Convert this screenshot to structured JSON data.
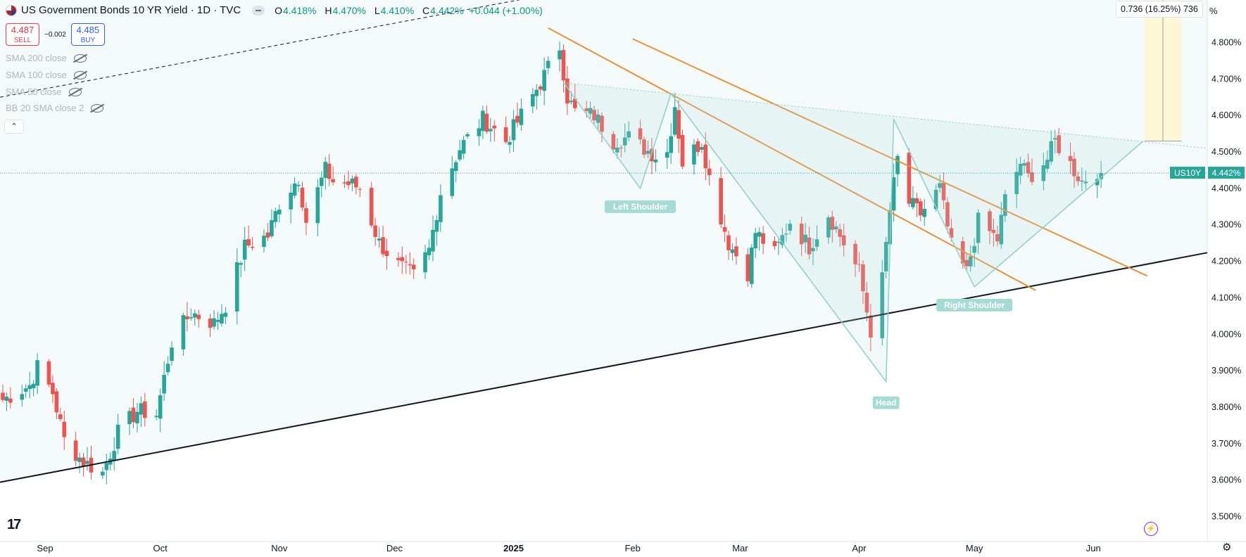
{
  "header": {
    "title": "US Government Bonds 10 YR Yield · 1D · TVC",
    "ohlc": [
      {
        "key": "O",
        "value": "4.418%"
      },
      {
        "key": "H",
        "value": "4.470%"
      },
      {
        "key": "L",
        "value": "4.410%"
      },
      {
        "key": "C",
        "value": "4.442%"
      }
    ],
    "change": "+0.044 (+1.00%)"
  },
  "trade": {
    "sell_price": "4.487",
    "sell_label": "SELL",
    "spread": "−0.002",
    "buy_price": "4.485",
    "buy_label": "BUY"
  },
  "indicators": [
    "SMA 200 close",
    "SMA 100 close",
    "SMA 50 close",
    "BB 20 SMA close 2"
  ],
  "collapse_icon": "chevron-up-icon",
  "measure_label": "0.736 (16.25%) 736",
  "axis_unit": "%",
  "colors": {
    "up": "#26a69a",
    "down": "#ef5350",
    "price_tag": "#26a69a",
    "pattern": "#b5dedb",
    "channel": "#e8913a",
    "trendline": "#131722"
  },
  "chart_data": {
    "type": "candlestick",
    "title": "US Government Bonds 10 YR Yield",
    "ylim": [
      3.45,
      4.87
    ],
    "ylabel": "%",
    "y_ticks": [
      "4.800%",
      "4.700%",
      "4.600%",
      "4.500%",
      "4.400%",
      "4.300%",
      "4.200%",
      "4.100%",
      "4.000%",
      "3.900%",
      "3.800%",
      "3.700%",
      "3.600%",
      "3.500%"
    ],
    "x_ticks": [
      "Sep",
      "Oct",
      "Nov",
      "Dec",
      "2025",
      "Feb",
      "Mar",
      "Apr",
      "May",
      "Jun"
    ],
    "x_tick_dates": [
      "2024-09-01",
      "2024-10-01",
      "2024-11-01",
      "2024-12-01",
      "2025-01-01",
      "2025-02-01",
      "2025-03-01",
      "2025-04-01",
      "2025-05-01",
      "2025-06-01"
    ],
    "x_range": [
      "2024-08-21",
      "2025-06-18"
    ],
    "last_price": {
      "symbol": "US10Y",
      "value": 4.442,
      "label": "4.442%"
    },
    "close_key_points": [
      [
        "2024-08-21",
        3.82
      ],
      [
        "2024-08-28",
        3.86
      ],
      [
        "2024-08-30",
        3.91
      ],
      [
        "2024-09-03",
        3.84
      ],
      [
        "2024-09-06",
        3.71
      ],
      [
        "2024-09-11",
        3.65
      ],
      [
        "2024-09-16",
        3.62
      ],
      [
        "2024-09-20",
        3.73
      ],
      [
        "2024-09-25",
        3.79
      ],
      [
        "2024-09-30",
        3.78
      ],
      [
        "2024-10-04",
        3.98
      ],
      [
        "2024-10-09",
        4.06
      ],
      [
        "2024-10-15",
        4.03
      ],
      [
        "2024-10-18",
        4.08
      ],
      [
        "2024-10-23",
        4.24
      ],
      [
        "2024-10-29",
        4.27
      ],
      [
        "2024-11-01",
        4.36
      ],
      [
        "2024-11-06",
        4.43
      ],
      [
        "2024-11-08",
        4.31
      ],
      [
        "2024-11-13",
        4.45
      ],
      [
        "2024-11-15",
        4.42
      ],
      [
        "2024-11-20",
        4.41
      ],
      [
        "2024-11-22",
        4.4
      ],
      [
        "2024-11-27",
        4.25
      ],
      [
        "2024-12-02",
        4.19
      ],
      [
        "2024-12-06",
        4.16
      ],
      [
        "2024-12-10",
        4.23
      ],
      [
        "2024-12-13",
        4.39
      ],
      [
        "2024-12-18",
        4.51
      ],
      [
        "2024-12-24",
        4.59
      ],
      [
        "2024-12-30",
        4.53
      ],
      [
        "2025-01-03",
        4.6
      ],
      [
        "2025-01-08",
        4.69
      ],
      [
        "2025-01-13",
        4.79
      ],
      [
        "2025-01-15",
        4.65
      ],
      [
        "2025-01-17",
        4.61
      ],
      [
        "2025-01-22",
        4.6
      ],
      [
        "2025-01-27",
        4.53
      ],
      [
        "2025-01-31",
        4.54
      ],
      [
        "2025-02-04",
        4.51
      ],
      [
        "2025-02-07",
        4.49
      ],
      [
        "2025-02-10",
        4.5
      ],
      [
        "2025-02-12",
        4.63
      ],
      [
        "2025-02-14",
        4.47
      ],
      [
        "2025-02-19",
        4.53
      ],
      [
        "2025-02-21",
        4.43
      ],
      [
        "2025-02-26",
        4.25
      ],
      [
        "2025-03-03",
        4.17
      ],
      [
        "2025-03-05",
        4.28
      ],
      [
        "2025-03-10",
        4.22
      ],
      [
        "2025-03-14",
        4.31
      ],
      [
        "2025-03-19",
        4.24
      ],
      [
        "2025-03-24",
        4.33
      ],
      [
        "2025-03-28",
        4.25
      ],
      [
        "2025-04-01",
        4.17
      ],
      [
        "2025-04-04",
        4.01
      ],
      [
        "2025-04-07",
        4.15
      ],
      [
        "2025-04-09",
        4.34
      ],
      [
        "2025-04-11",
        4.48
      ],
      [
        "2025-04-14",
        4.36
      ],
      [
        "2025-04-17",
        4.33
      ],
      [
        "2025-04-22",
        4.4
      ],
      [
        "2025-04-25",
        4.24
      ],
      [
        "2025-04-29",
        4.17
      ],
      [
        "2025-05-02",
        4.31
      ],
      [
        "2025-05-07",
        4.26
      ],
      [
        "2025-05-09",
        4.37
      ],
      [
        "2025-05-13",
        4.47
      ],
      [
        "2025-05-15",
        4.43
      ],
      [
        "2025-05-20",
        4.48
      ],
      [
        "2025-05-22",
        4.53
      ],
      [
        "2025-05-27",
        4.45
      ],
      [
        "2025-05-29",
        4.42
      ],
      [
        "2025-06-02",
        4.45
      ],
      [
        "2025-06-03",
        4.442
      ]
    ],
    "annotations": [
      {
        "label": "Left Shoulder",
        "date": "2025-02-03",
        "value": 4.4
      },
      {
        "label": "Head",
        "date": "2025-04-08",
        "value": 3.87
      },
      {
        "label": "Right Shoulder",
        "date": "2025-05-01",
        "value": 4.13
      }
    ]
  }
}
